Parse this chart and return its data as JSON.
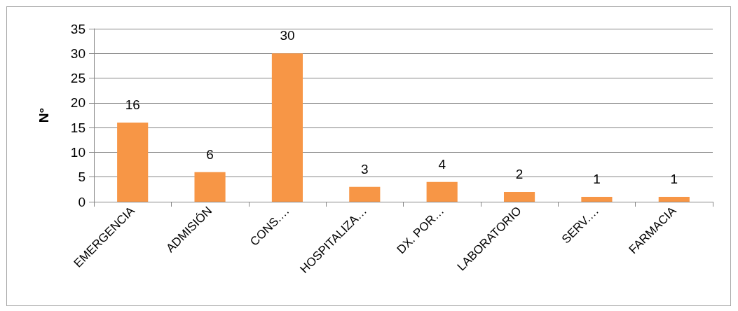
{
  "chart_data": {
    "type": "bar",
    "ylabel": "N°",
    "categories": [
      "EMERGENCIA",
      "ADMISIÓN",
      "CONS.…",
      "HOSPITALIZA…",
      "DX. POR…",
      "LABORATORIO",
      "SERV.…",
      "FARMACIA"
    ],
    "values": [
      16,
      6,
      30,
      3,
      4,
      2,
      1,
      1
    ],
    "color": "#f79646",
    "ylim": [
      0,
      35
    ],
    "yticks": [
      0,
      5,
      10,
      15,
      20,
      25,
      30,
      35
    ],
    "grid": "y",
    "data_labels": true
  }
}
